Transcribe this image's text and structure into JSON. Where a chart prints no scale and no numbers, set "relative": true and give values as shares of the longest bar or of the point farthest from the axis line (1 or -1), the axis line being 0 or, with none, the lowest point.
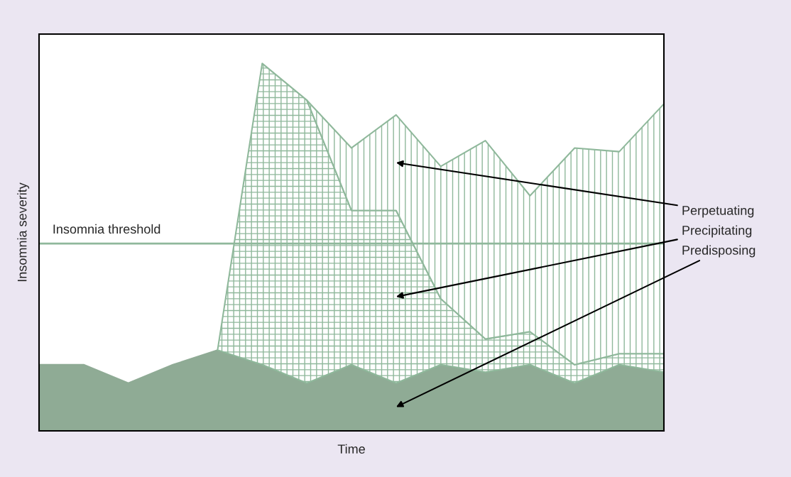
{
  "chart_data": {
    "type": "area",
    "relative": true,
    "stacked": true,
    "xlabel": "Time",
    "ylabel": "Insomnia severity",
    "categories": [
      null,
      null,
      null,
      null,
      null,
      null,
      null,
      null,
      null,
      null,
      null,
      null,
      null,
      null,
      null
    ],
    "series": [
      {
        "name": "Predisposing",
        "color": "#8fab95",
        "values": [
          0.18,
          0.18,
          0.13,
          0.18,
          0.22,
          0.18,
          0.13,
          0.18,
          0.13,
          0.18,
          0.16,
          0.18,
          0.13,
          0.18,
          0.16
        ]
      },
      {
        "name": "Precipitating",
        "color": "#8fb89b",
        "values": [
          null,
          null,
          null,
          null,
          0,
          0.82,
          0.77,
          0.42,
          0.47,
          0.18,
          0.09,
          0.09,
          0.05,
          0.03,
          0.05
        ]
      },
      {
        "name": "Perpetuating",
        "color": "#8fb89b",
        "values": [
          null,
          null,
          null,
          null,
          null,
          null,
          0,
          0.17,
          0.26,
          0.36,
          0.54,
          0.37,
          0.59,
          0.55,
          0.68
        ]
      }
    ],
    "ref_lines": [
      {
        "axis": "y",
        "value": 0.51,
        "label": "Insomnia threshold",
        "color": "#8fb89b"
      }
    ],
    "legend": false,
    "grid": false
  }
}
